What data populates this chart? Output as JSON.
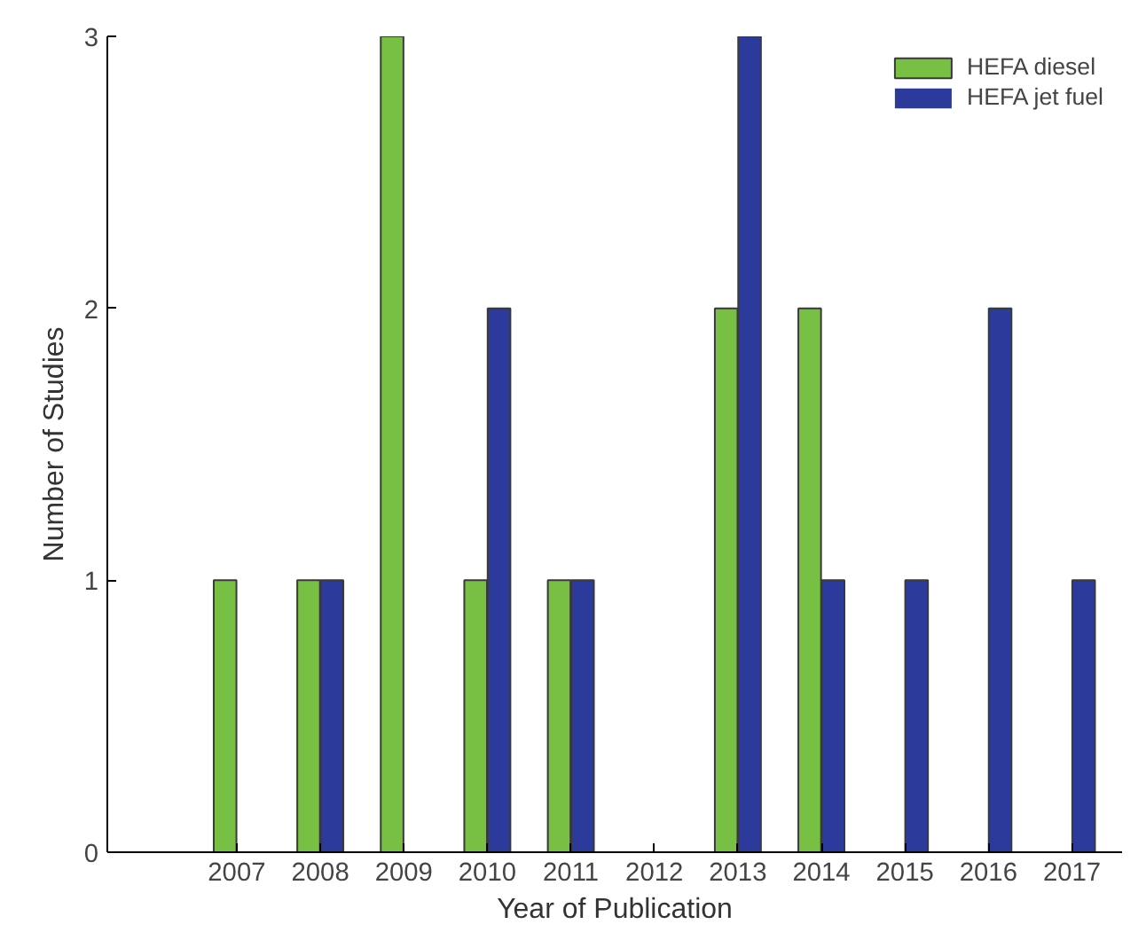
{
  "chart_data": {
    "type": "bar",
    "xlabel": "Year of Publication",
    "ylabel": "Number of Studies",
    "categories": [
      "2007",
      "2008",
      "2009",
      "2010",
      "2011",
      "2012",
      "2013",
      "2014",
      "2015",
      "2016",
      "2017"
    ],
    "series": [
      {
        "name": "HEFA diesel",
        "color": "#77c043",
        "values": [
          1,
          1,
          3,
          1,
          1,
          0,
          2,
          2,
          0,
          0,
          0
        ]
      },
      {
        "name": "HEFA jet fuel",
        "color": "#2c3a9c",
        "values": [
          0,
          1,
          0,
          2,
          1,
          0,
          3,
          1,
          1,
          2,
          1
        ]
      }
    ],
    "ylim": [
      0,
      3
    ],
    "yticks": [
      0,
      1,
      2,
      3
    ],
    "grid": false,
    "legend": "top right"
  }
}
